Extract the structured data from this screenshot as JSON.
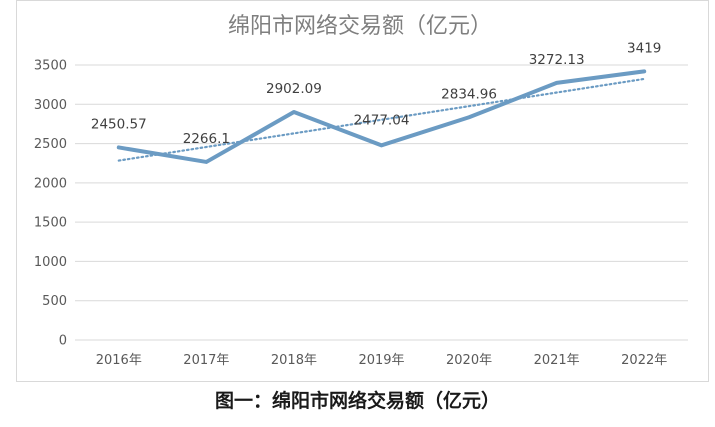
{
  "chart_data": {
    "type": "line",
    "title": "绵阳市网络交易额（亿元）",
    "categories": [
      "2016年",
      "2017年",
      "2018年",
      "2019年",
      "2020年",
      "2021年",
      "2022年"
    ],
    "series": [
      {
        "values": [
          2450.57,
          2266.1,
          2902.09,
          2477.04,
          2834.96,
          3272.13,
          3419
        ],
        "labels": [
          "2450.57",
          "2266.1",
          "2902.09",
          "2477.04",
          "2834.96",
          "3272.13",
          "3419"
        ],
        "color": "#6b9bc3"
      }
    ],
    "trendline": {
      "type": "linear",
      "style": "dotted",
      "color": "#6b9bc3"
    },
    "yticks": [
      "0",
      "500",
      "1000",
      "1500",
      "2000",
      "2500",
      "3000",
      "3500"
    ],
    "ylim": [
      0,
      3500
    ],
    "grid": true,
    "legend": "none"
  },
  "caption": "图一：绵阳市网络交易额（亿元）"
}
